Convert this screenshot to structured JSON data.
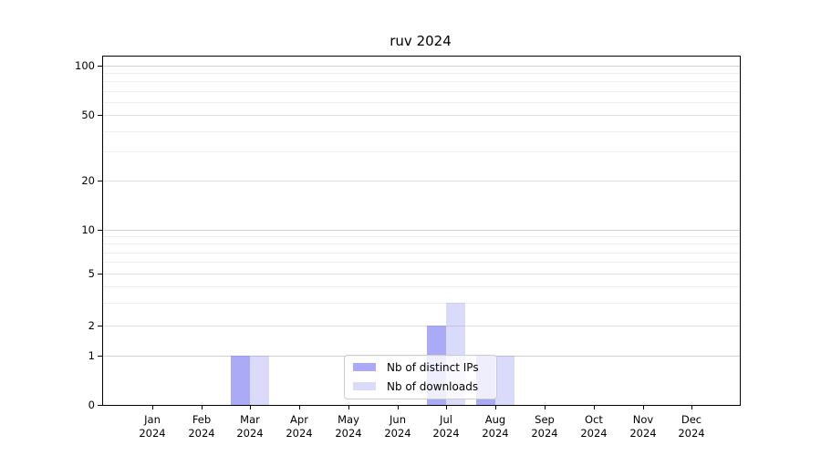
{
  "title": "ruv 2024",
  "colors": {
    "distinct_ips_bar": "rgba(120,120,240,0.63)",
    "downloads_bar": "rgba(120,120,240,0.27)",
    "distinct_ips_swatch": "#aaaaf8",
    "downloads_swatch": "#dadafa",
    "grid_decade": "#d3d3d3",
    "grid_labeled": "#e1e1e1",
    "grid_minor": "#eeeeee",
    "axis_frame": "#000000",
    "legend_border": "#cccccc",
    "text": "#000000"
  },
  "y_axis": {
    "tick_labels": [
      "0",
      "1",
      "2",
      "5",
      "10",
      "20",
      "50",
      "100"
    ],
    "tick_values": [
      0,
      1,
      2,
      5,
      10,
      20,
      50,
      100
    ],
    "decade_gridline_values": [
      1,
      10,
      100
    ],
    "labeled_gridline_values": [
      2,
      5,
      20,
      50
    ],
    "minor_gridline_values": [
      3,
      4,
      6,
      7,
      8,
      9,
      30,
      40,
      60,
      70,
      80,
      90
    ]
  },
  "x_axis": {
    "months": [
      {
        "month": "Jan",
        "year": "2024"
      },
      {
        "month": "Feb",
        "year": "2024"
      },
      {
        "month": "Mar",
        "year": "2024"
      },
      {
        "month": "Apr",
        "year": "2024"
      },
      {
        "month": "May",
        "year": "2024"
      },
      {
        "month": "Jun",
        "year": "2024"
      },
      {
        "month": "Jul",
        "year": "2024"
      },
      {
        "month": "Aug",
        "year": "2024"
      },
      {
        "month": "Sep",
        "year": "2024"
      },
      {
        "month": "Oct",
        "year": "2024"
      },
      {
        "month": "Nov",
        "year": "2024"
      },
      {
        "month": "Dec",
        "year": "2024"
      }
    ]
  },
  "legend": {
    "items": [
      {
        "label": "Nb of distinct IPs",
        "swatch": "distinct_ips_swatch"
      },
      {
        "label": "Nb of downloads",
        "swatch": "downloads_swatch"
      }
    ]
  },
  "chart_data": {
    "type": "bar",
    "title": "ruv 2024",
    "categories": [
      "Jan 2024",
      "Feb 2024",
      "Mar 2024",
      "Apr 2024",
      "May 2024",
      "Jun 2024",
      "Jul 2024",
      "Aug 2024",
      "Sep 2024",
      "Oct 2024",
      "Nov 2024",
      "Dec 2024"
    ],
    "series": [
      {
        "name": "Nb of distinct IPs",
        "color": "#aaaaf8",
        "values": [
          0,
          0,
          1,
          0,
          0,
          0,
          2,
          1,
          0,
          0,
          0,
          0
        ]
      },
      {
        "name": "Nb of downloads",
        "color": "#dadafa",
        "values": [
          0,
          0,
          1,
          0,
          0,
          0,
          3,
          1,
          0,
          0,
          0,
          0
        ]
      }
    ],
    "xlabel": "",
    "ylabel": "",
    "yscale": "symlog-like (linear 0-1, logarithmic above 1)",
    "y_tick_values": [
      0,
      1,
      2,
      5,
      10,
      20,
      50,
      100
    ],
    "ylim": [
      0,
      115
    ],
    "grid": true,
    "legend_position": "lower-center"
  }
}
